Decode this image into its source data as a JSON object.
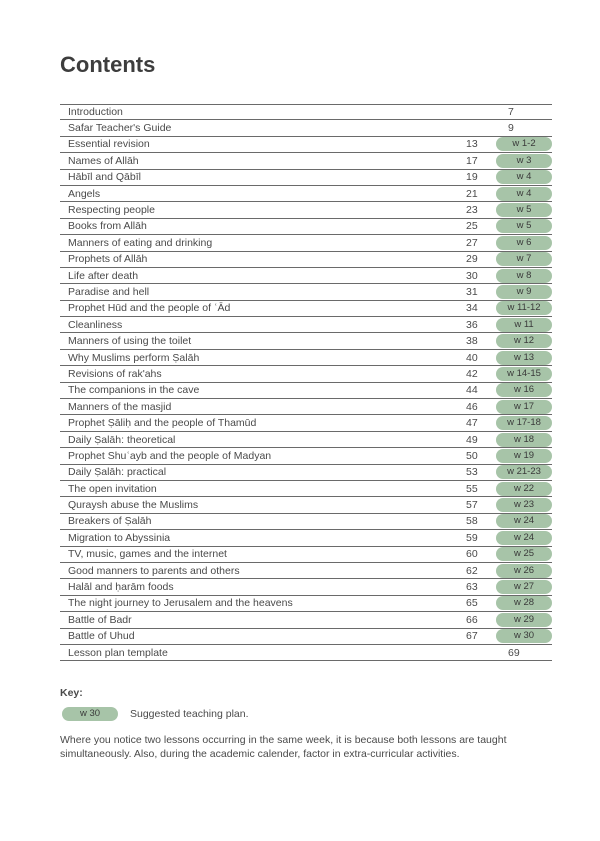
{
  "title": "Contents",
  "pill_bg": "#a7c4a8",
  "entries": [
    {
      "title": "Introduction",
      "page": "7",
      "week": ""
    },
    {
      "title": "Safar Teacher's Guide",
      "page": "9",
      "week": ""
    },
    {
      "title": "Essential revision",
      "page": "13",
      "week": "w 1-2"
    },
    {
      "title": "Names of Allāh",
      "page": "17",
      "week": "w 3"
    },
    {
      "title": "Hābīl and Qābīl",
      "page": "19",
      "week": "w 4"
    },
    {
      "title": "Angels",
      "page": "21",
      "week": "w 4"
    },
    {
      "title": "Respecting people",
      "page": "23",
      "week": "w 5"
    },
    {
      "title": "Books from Allāh",
      "page": "25",
      "week": "w 5"
    },
    {
      "title": "Manners of eating and drinking",
      "page": "27",
      "week": "w 6"
    },
    {
      "title": "Prophets of Allāh",
      "page": "29",
      "week": "w 7"
    },
    {
      "title": "Life after death",
      "page": "30",
      "week": "w 8"
    },
    {
      "title": "Paradise and hell",
      "page": "31",
      "week": "w 9"
    },
    {
      "title": "Prophet Hūd and the people of ʿĀd",
      "page": "34",
      "week": "w 11-12"
    },
    {
      "title": "Cleanliness",
      "page": "36",
      "week": "w 11"
    },
    {
      "title": "Manners of using the toilet",
      "page": "38",
      "week": "w 12"
    },
    {
      "title": "Why Muslims perform Ṣalāh",
      "page": "40",
      "week": "w 13"
    },
    {
      "title": "Revisions of rak'ahs",
      "page": "42",
      "week": "w 14-15"
    },
    {
      "title": "The companions in the cave",
      "page": "44",
      "week": "w 16"
    },
    {
      "title": "Manners of the masjid",
      "page": "46",
      "week": "w 17"
    },
    {
      "title": "Prophet Ṣāliḥ and the people of Thamūd",
      "page": "47",
      "week": "w 17-18"
    },
    {
      "title": "Daily Ṣalāh: theoretical",
      "page": "49",
      "week": "w 18"
    },
    {
      "title": "Prophet Shuʿayb and the people of Madyan",
      "page": "50",
      "week": "w 19"
    },
    {
      "title": "Daily Ṣalāh: practical",
      "page": "53",
      "week": "w 21-23"
    },
    {
      "title": "The open invitation",
      "page": "55",
      "week": "w 22"
    },
    {
      "title": "Quraysh abuse the Muslims",
      "page": "57",
      "week": "w 23"
    },
    {
      "title": "Breakers of Ṣalāh",
      "page": "58",
      "week": "w 24"
    },
    {
      "title": "Migration to Abyssinia",
      "page": "59",
      "week": "w 24"
    },
    {
      "title": "TV, music, games and the internet",
      "page": "60",
      "week": "w 25"
    },
    {
      "title": "Good manners to parents and others",
      "page": "62",
      "week": "w 26"
    },
    {
      "title": "Halāl and ḥarām foods",
      "page": "63",
      "week": "w 27"
    },
    {
      "title": "The night journey to Jerusalem and the heavens",
      "page": "65",
      "week": "w 28"
    },
    {
      "title": "Battle of Badr",
      "page": "66",
      "week": "w 29"
    },
    {
      "title": "Battle of Uhud",
      "page": "67",
      "week": "w 30"
    },
    {
      "title": "Lesson plan template",
      "page": "69",
      "week": ""
    }
  ],
  "key": {
    "label": "Key:",
    "pill_text": "w 30",
    "pill_desc": "Suggested teaching plan.",
    "note": "Where you notice two lessons occurring in the same week, it is because both lessons are taught simultaneously. Also, during the academic calender, factor in extra-curricular activities."
  }
}
